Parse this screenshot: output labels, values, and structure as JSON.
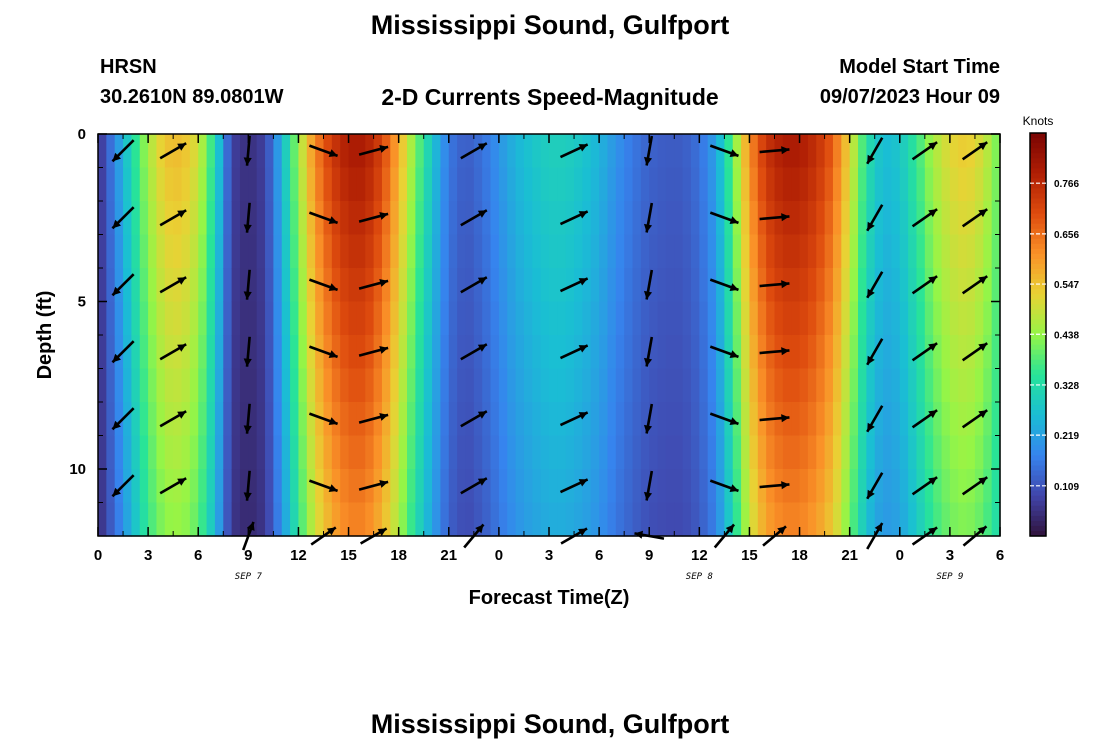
{
  "page": {
    "title": "Mississippi Sound, Gulfport",
    "station_name": "HRSN",
    "station_coords": "30.2610N  89.0801W",
    "subtitle": "2-D Currents Speed-Magnitude",
    "model_start_label": "Model Start Time",
    "model_start_time": "09/07/2023 Hour 09",
    "footer_title": "Mississippi Sound, Gulfport"
  },
  "chart_data": {
    "type": "heatmap",
    "title": "2-D Currents Speed-Magnitude",
    "xlabel": "Forecast Time(Z)",
    "ylabel": "Depth (ft)",
    "x_tick_labels": [
      "0",
      "3",
      "6",
      "9",
      "12",
      "15",
      "18",
      "21",
      "0",
      "3",
      "6",
      "9",
      "12",
      "15",
      "18",
      "21",
      "0",
      "3",
      "6"
    ],
    "x_range_hours": [
      0,
      54
    ],
    "date_labels": [
      {
        "label": "SEP 7",
        "hour": 9
      },
      {
        "label": "SEP 8",
        "hour": 36
      },
      {
        "label": "SEP 9",
        "hour": 51
      }
    ],
    "y_tick_labels": [
      "0",
      "5",
      "10"
    ],
    "y_range_ft": [
      0,
      12
    ],
    "colorbar": {
      "label": "Knots",
      "range": [
        0.0,
        0.875
      ],
      "ticks": [
        "0.109",
        "0.219",
        "0.328",
        "0.438",
        "0.547",
        "0.656",
        "0.766"
      ],
      "tick_values": [
        0.109,
        0.219,
        0.328,
        0.438,
        0.547,
        0.656,
        0.766
      ]
    },
    "speed_profile_by_hour": [
      [
        0,
        0.05
      ],
      [
        1,
        0.18
      ],
      [
        2,
        0.32
      ],
      [
        3,
        0.46
      ],
      [
        4,
        0.55
      ],
      [
        5,
        0.56
      ],
      [
        6,
        0.5
      ],
      [
        7,
        0.33
      ],
      [
        7.5,
        0.2
      ],
      [
        8,
        0.08
      ],
      [
        9,
        0.05
      ],
      [
        10,
        0.08
      ],
      [
        11,
        0.25
      ],
      [
        12,
        0.45
      ],
      [
        13,
        0.63
      ],
      [
        14,
        0.74
      ],
      [
        15,
        0.8
      ],
      [
        16,
        0.8
      ],
      [
        17,
        0.72
      ],
      [
        18,
        0.58
      ],
      [
        19,
        0.42
      ],
      [
        20,
        0.28
      ],
      [
        21,
        0.16
      ],
      [
        22,
        0.12
      ],
      [
        23,
        0.15
      ],
      [
        24,
        0.2
      ],
      [
        25,
        0.25
      ],
      [
        26,
        0.28
      ],
      [
        27,
        0.3
      ],
      [
        28,
        0.3
      ],
      [
        29,
        0.28
      ],
      [
        30,
        0.25
      ],
      [
        31,
        0.2
      ],
      [
        32,
        0.16
      ],
      [
        33,
        0.13
      ],
      [
        34,
        0.12
      ],
      [
        35,
        0.12
      ],
      [
        36,
        0.15
      ],
      [
        37,
        0.22
      ],
      [
        38,
        0.4
      ],
      [
        39,
        0.62
      ],
      [
        40,
        0.75
      ],
      [
        41,
        0.8
      ],
      [
        42,
        0.8
      ],
      [
        43,
        0.76
      ],
      [
        44,
        0.68
      ],
      [
        45,
        0.52
      ],
      [
        46,
        0.34
      ],
      [
        47,
        0.26
      ],
      [
        48,
        0.28
      ],
      [
        49,
        0.36
      ],
      [
        50,
        0.46
      ],
      [
        51,
        0.52
      ],
      [
        52,
        0.54
      ],
      [
        53,
        0.5
      ],
      [
        54,
        0.4
      ]
    ],
    "arrows": {
      "hours": [
        1.5,
        4.5,
        9,
        13.5,
        16.5,
        22.5,
        28.5,
        33,
        37.5,
        40.5,
        46.5,
        49.5,
        52.5
      ],
      "depths_ft": [
        0.5,
        2.5,
        4.5,
        6.5,
        8.5,
        10.5,
        12
      ],
      "direction_deg_ccw_from_east": [
        -135,
        30,
        -95,
        -20,
        15,
        30,
        25,
        -100,
        -20,
        5,
        -120,
        35,
        35
      ],
      "near_bottom_direction_deg": [
        null,
        null,
        70,
        35,
        30,
        50,
        30,
        170,
        50,
        40,
        60,
        35,
        40
      ]
    }
  }
}
